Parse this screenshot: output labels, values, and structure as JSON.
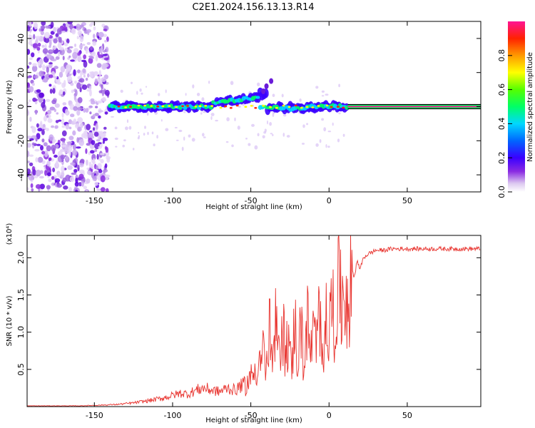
{
  "title": "C2E1.2024.156.13.13.R14",
  "chart_data": [
    {
      "type": "heatmap",
      "xlabel": "Height of straight line (km)",
      "ylabel": "Frequency (Hz)",
      "xlim": [
        -193,
        97
      ],
      "ylim": [
        -50,
        50
      ],
      "xticks": [
        -150,
        -100,
        -50,
        0,
        50
      ],
      "yticks": [
        -40,
        -20,
        0,
        20,
        40
      ],
      "colorbar": {
        "label": "Normalized spectral amplitude",
        "range": [
          0,
          1
        ],
        "ticks": [
          0.0,
          0.2,
          0.4,
          0.6,
          0.8
        ],
        "colormap": "rainbow"
      },
      "regions": [
        {
          "x": [
            -193,
            -140
          ],
          "y": [
            -50,
            50
          ],
          "level": 0.15
        },
        {
          "x": [
            -140,
            12
          ],
          "y": [
            -4,
            4
          ],
          "level": 0.5
        },
        {
          "x": [
            -70,
            -35
          ],
          "y": [
            2,
            10
          ],
          "level": 0.3
        },
        {
          "x": [
            12,
            97
          ],
          "y": [
            -1,
            1
          ],
          "level": 0.95
        }
      ]
    },
    {
      "type": "line",
      "xlabel": "Height of straight line (km)",
      "ylabel": "SNR (10 * v/v)",
      "yscale_label": "(x10⁴)",
      "xlim": [
        -193,
        97
      ],
      "ylim": [
        0,
        2.3
      ],
      "xticks": [
        -150,
        -100,
        -50,
        0,
        50
      ],
      "yticks": [
        0.5,
        1.0,
        1.5,
        2.0
      ],
      "series": [
        {
          "color": "#e8342f",
          "x": [
            -193,
            -180,
            -160,
            -145,
            -135,
            -125,
            -115,
            -105,
            -100,
            -95,
            -90,
            -85,
            -80,
            -75,
            -70,
            -65,
            -60,
            -55,
            -50,
            -45,
            -42,
            -40,
            -38,
            -36,
            -34,
            -32,
            -30,
            -28,
            -26,
            -24,
            -22,
            -20,
            -18,
            -16,
            -14,
            -12,
            -10,
            -8,
            -6,
            -4,
            -2,
            0,
            2,
            4,
            6,
            8,
            10,
            12,
            14,
            16,
            18,
            20,
            22,
            25,
            30,
            35,
            40,
            50,
            60,
            70,
            80,
            97
          ],
          "y": [
            0.01,
            0.01,
            0.01,
            0.02,
            0.03,
            0.05,
            0.08,
            0.12,
            0.15,
            0.18,
            0.17,
            0.22,
            0.25,
            0.22,
            0.2,
            0.25,
            0.22,
            0.3,
            0.45,
            0.7,
            0.9,
            0.55,
            1.2,
            0.6,
            1.3,
            0.7,
            1.5,
            0.8,
            1.2,
            0.5,
            1.4,
            0.7,
            1.3,
            0.6,
            1.4,
            0.8,
            1.2,
            0.9,
            1.5,
            1.0,
            1.3,
            1.2,
            1.6,
            1.4,
            1.8,
            1.6,
            1.9,
            1.7,
            1.85,
            1.75,
            1.95,
            1.85,
            2.0,
            2.05,
            2.1,
            2.1,
            2.12,
            2.12,
            2.12,
            2.12,
            2.12,
            2.12
          ]
        }
      ]
    }
  ]
}
